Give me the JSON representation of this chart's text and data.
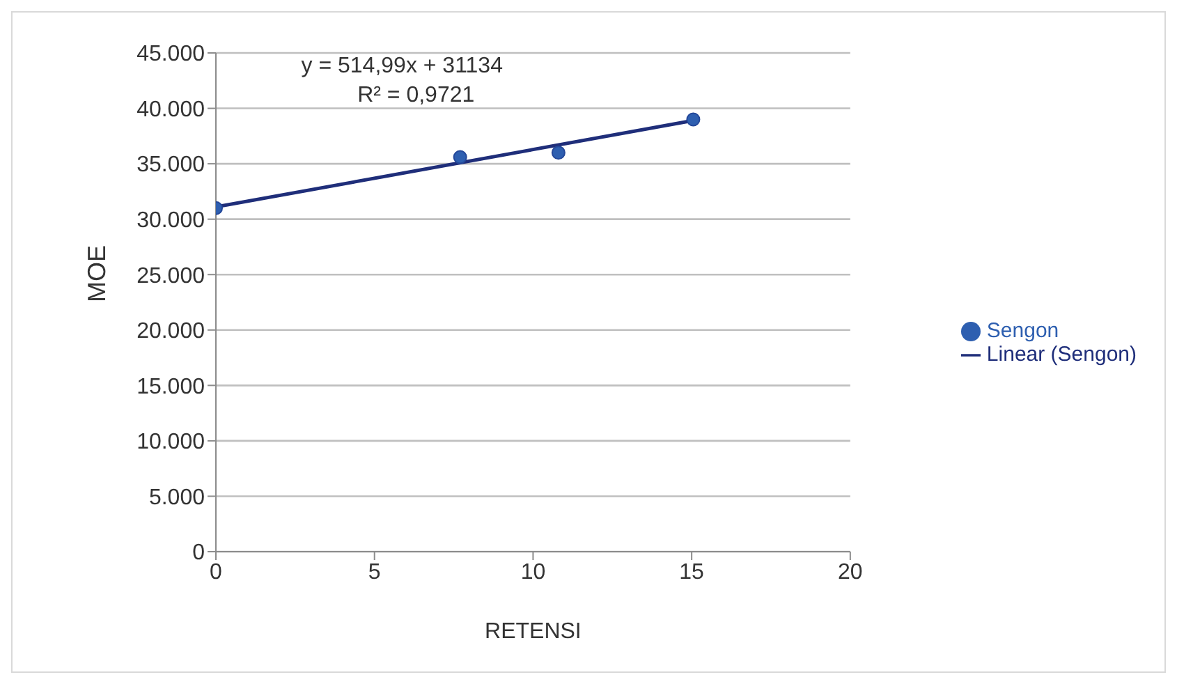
{
  "chart_data": {
    "type": "scatter",
    "xlabel": "RETENSI",
    "ylabel": "MOE",
    "xlim": [
      0,
      20
    ],
    "xticks": [
      0,
      5,
      10,
      15,
      20
    ],
    "ylim": [
      0,
      45000
    ],
    "yticks": [
      {
        "value": 0,
        "label": "0"
      },
      {
        "value": 5000,
        "label": "5.000"
      },
      {
        "value": 10000,
        "label": "10.000"
      },
      {
        "value": 15000,
        "label": "15.000"
      },
      {
        "value": 20000,
        "label": "20.000"
      },
      {
        "value": 25000,
        "label": "25.000"
      },
      {
        "value": 30000,
        "label": "30.000"
      },
      {
        "value": 35000,
        "label": "35.000"
      },
      {
        "value": 40000,
        "label": "40.000"
      },
      {
        "value": 45000,
        "label": "45.000"
      }
    ],
    "series": [
      {
        "name": "Sengon",
        "color": "#2e5fb0",
        "x": [
          0,
          7.7,
          10.8,
          15.05
        ],
        "values": [
          31000,
          35600,
          36000,
          39000
        ]
      },
      {
        "name": "Linear (Sengon)",
        "type": "line",
        "color": "#1f2e7a",
        "x": [
          0,
          15.05
        ],
        "values": [
          31100,
          38900
        ],
        "marker": "none"
      }
    ],
    "annotations": [
      "y = 514,99x + 31134",
      "R² = 0,9721"
    ],
    "grid": "y",
    "legend": "right"
  }
}
